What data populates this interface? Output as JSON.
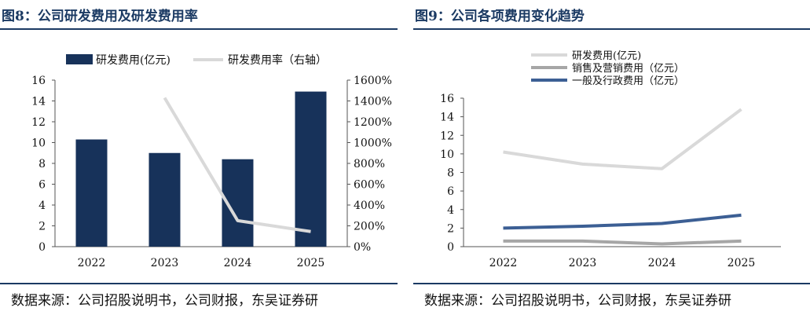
{
  "figures": [
    {
      "title": "图8：公司研发费用及研发费用率",
      "source": "数据来源：公司招股说明书，公司财报，东吴证券研",
      "chart_data": {
        "type": "bar",
        "categories": [
          "2022",
          "2023",
          "2024",
          "2025"
        ],
        "series": [
          {
            "name": "研发费用(亿元)",
            "type": "bar",
            "axis": "left",
            "color": "#17325a",
            "values": [
              10.3,
              9.0,
              8.4,
              14.9
            ]
          },
          {
            "name": "研发费用率（右轴）",
            "type": "line",
            "axis": "right",
            "color": "#d9d9d9",
            "values": [
              null,
              1430,
              250,
              145
            ]
          }
        ],
        "y_left": {
          "min": 0,
          "max": 16,
          "step": 2,
          "ticks": [
            "0",
            "2",
            "4",
            "6",
            "8",
            "10",
            "12",
            "14",
            "16"
          ]
        },
        "y_right": {
          "min": 0,
          "max": 1600,
          "step": 200,
          "ticks": [
            "0%",
            "200%",
            "400%",
            "600%",
            "800%",
            "1000%",
            "1200%",
            "1400%",
            "1600%"
          ]
        },
        "grid": false,
        "legend": "top"
      }
    },
    {
      "title": "图9：公司各项费用变化趋势",
      "source": "数据来源：公司招股说明书，公司财报，东吴证券研",
      "chart_data": {
        "type": "line",
        "categories": [
          "2022",
          "2023",
          "2024",
          "2025"
        ],
        "series": [
          {
            "name": "研发费用(亿元)",
            "color": "#d9d9d9",
            "values": [
              10.2,
              8.9,
              8.4,
              14.8
            ]
          },
          {
            "name": "销售及营销费用（亿元）",
            "color": "#a6a6a6",
            "values": [
              0.6,
              0.6,
              0.3,
              0.6
            ]
          },
          {
            "name": "一般及行政费用（亿元）",
            "color": "#3c5f94",
            "values": [
              2.0,
              2.2,
              2.5,
              3.4
            ]
          }
        ],
        "y": {
          "min": 0,
          "max": 16,
          "step": 2,
          "ticks": [
            "0",
            "2",
            "4",
            "6",
            "8",
            "10",
            "12",
            "14",
            "16"
          ]
        },
        "grid": false,
        "legend": "top"
      }
    }
  ]
}
